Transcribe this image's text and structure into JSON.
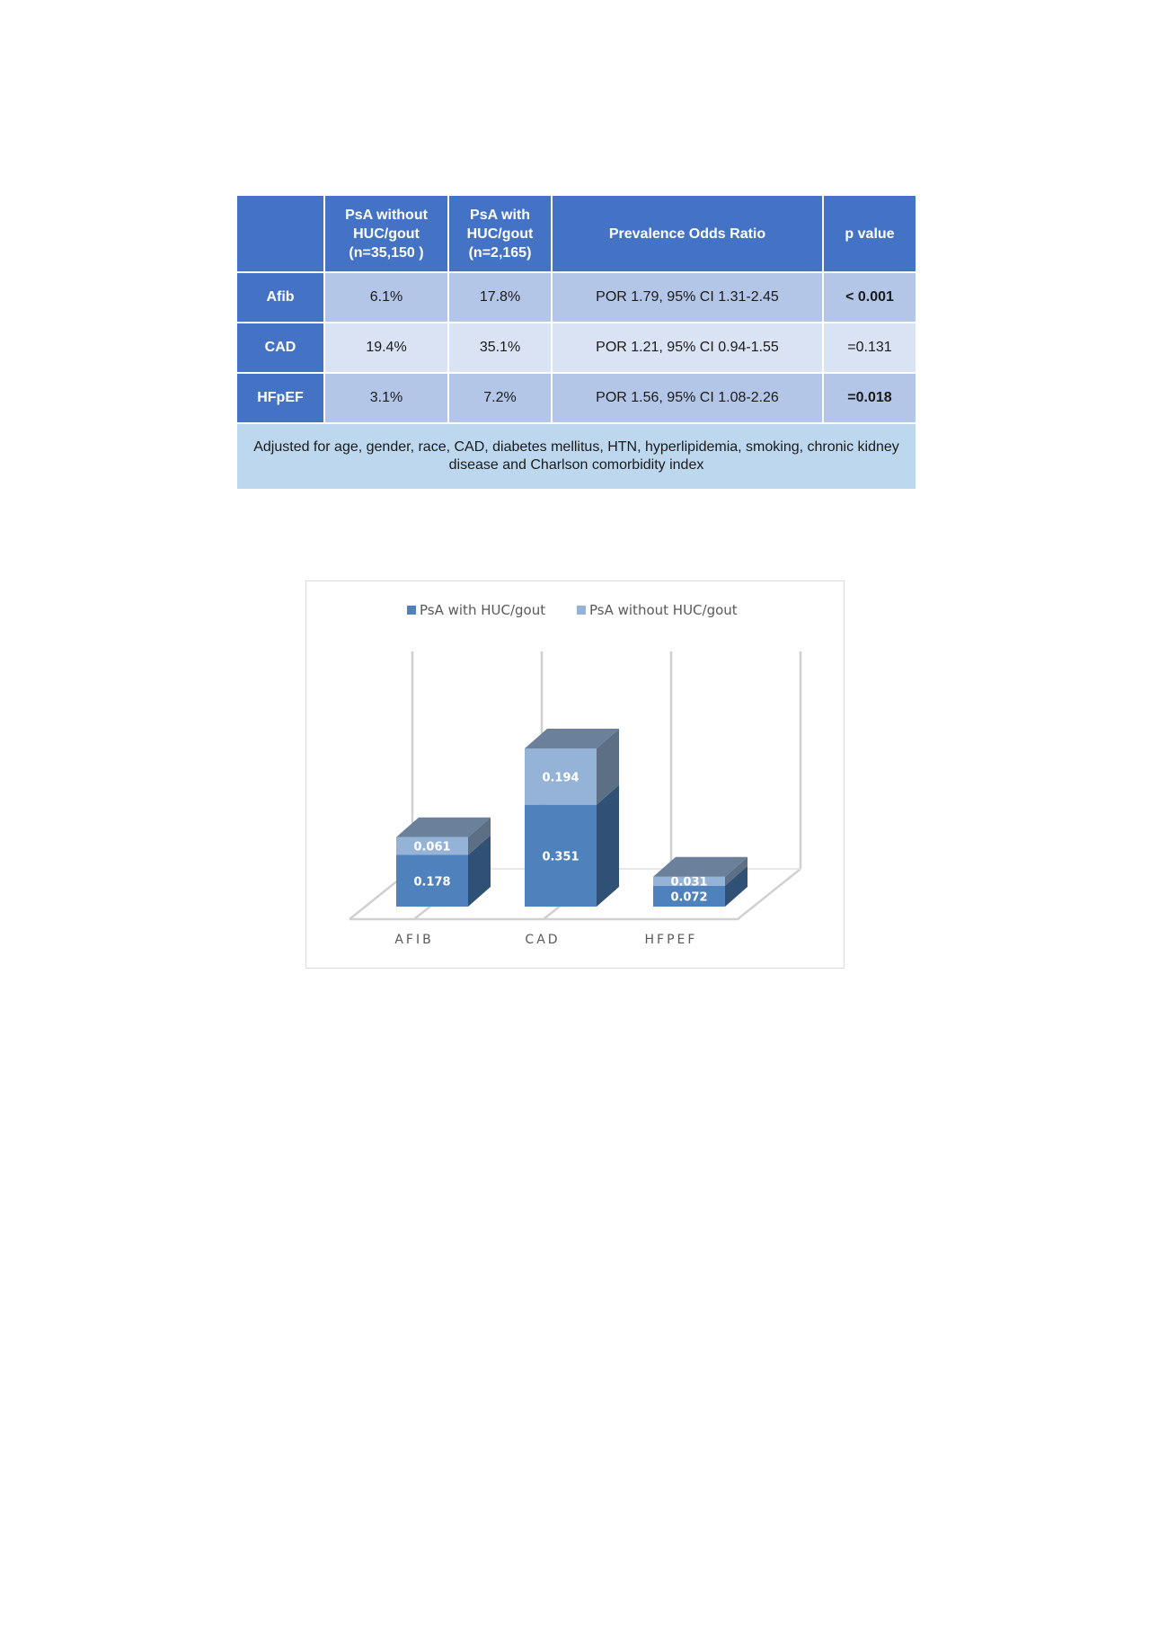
{
  "table": {
    "headers": [
      {
        "lines": [
          ""
        ]
      },
      {
        "lines": [
          "PsA without",
          "HUC/gout",
          "(n=35,150  )"
        ]
      },
      {
        "lines": [
          "PsA with",
          "HUC/gout",
          "(n=2,165)"
        ]
      },
      {
        "lines": [
          "Prevalence Odds Ratio"
        ]
      },
      {
        "lines": [
          "p value"
        ]
      }
    ],
    "rows": [
      {
        "label": "Afib",
        "without": "6.1%",
        "with": "17.8%",
        "por": "POR 1.79, 95% CI 1.31-2.45",
        "p": "< 0.001",
        "p_bold": true
      },
      {
        "label": "CAD",
        "without": "19.4%",
        "with": "35.1%",
        "por": "POR 1.21, 95% CI 0.94-1.55",
        "p": "=0.131",
        "p_bold": false
      },
      {
        "label": "HFpEF",
        "without": "3.1%",
        "with": "7.2%",
        "por": "POR 1.56, 95% CI 1.08-2.26",
        "p": "=0.018",
        "p_bold": true
      }
    ],
    "footnote": "Adjusted for age, gender, race, CAD, diabetes mellitus, HTN, hyperlipidemia, smoking, chronic kidney disease and Charlson comorbidity index"
  },
  "colors": {
    "header_bg": "#4472c4",
    "row_odd": "#b4c6e7",
    "row_even": "#dae3f3",
    "footnote_bg": "#bdd7ee",
    "series_with": "#4f81bd",
    "series_without": "#95b3d7"
  },
  "chart_data": {
    "type": "bar",
    "stacked": true,
    "three_d": true,
    "categories": [
      "AFIB",
      "CAD",
      "HFPEF"
    ],
    "series": [
      {
        "name": "PsA with HUC/gout",
        "values": [
          0.178,
          0.351,
          0.072
        ],
        "color": "#4f81bd"
      },
      {
        "name": "PsA without HUC/gout",
        "values": [
          0.061,
          0.194,
          0.031
        ],
        "color": "#95b3d7"
      }
    ],
    "data_labels": true,
    "legend_position": "top",
    "grid": false
  }
}
